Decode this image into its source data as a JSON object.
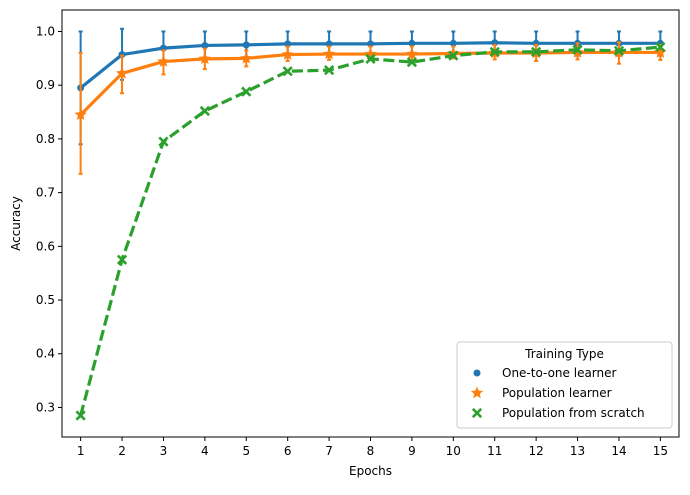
{
  "chart_data": {
    "type": "line",
    "xlabel": "Epochs",
    "ylabel": "Accuracy",
    "x": [
      1,
      2,
      3,
      4,
      5,
      6,
      7,
      8,
      9,
      10,
      11,
      12,
      13,
      14,
      15
    ],
    "x_tick_labels": [
      "1",
      "2",
      "3",
      "4",
      "5",
      "6",
      "7",
      "8",
      "9",
      "10",
      "11",
      "12",
      "13",
      "14",
      "15"
    ],
    "ylim": [
      0.245,
      1.04
    ],
    "y_ticks": [
      0.3,
      0.4,
      0.5,
      0.6,
      0.7,
      0.8,
      0.9,
      1.0
    ],
    "y_tick_labels": [
      "0.3",
      "0.4",
      "0.5",
      "0.6",
      "0.7",
      "0.8",
      "0.9",
      "1.0"
    ],
    "grid": false,
    "legend": {
      "title": "Training Type",
      "placement": "lower-right"
    },
    "series": [
      {
        "name": "One-to-one learner",
        "color": "#1f77b4",
        "marker": "circle",
        "linestyle": "solid",
        "values": [
          0.895,
          0.957,
          0.969,
          0.974,
          0.975,
          0.977,
          0.977,
          0.977,
          0.978,
          0.978,
          0.979,
          0.978,
          0.978,
          0.978,
          0.978
        ],
        "err_low": [
          0.79,
          0.91,
          0.94,
          0.948,
          0.95,
          0.953,
          0.955,
          0.955,
          0.955,
          0.955,
          0.958,
          0.955,
          0.955,
          0.955,
          0.955
        ],
        "err_high": [
          1.0,
          1.005,
          1.0,
          1.0,
          1.0,
          1.0,
          1.0,
          1.0,
          1.0,
          1.0,
          1.0,
          1.0,
          1.0,
          1.0,
          1.0
        ]
      },
      {
        "name": "Population learner",
        "color": "#ff7f0e",
        "marker": "star",
        "linestyle": "solid",
        "values": [
          0.845,
          0.922,
          0.944,
          0.949,
          0.95,
          0.957,
          0.958,
          0.958,
          0.958,
          0.959,
          0.96,
          0.96,
          0.961,
          0.961,
          0.961
        ],
        "err_low": [
          0.735,
          0.885,
          0.92,
          0.93,
          0.935,
          0.945,
          0.947,
          0.947,
          0.945,
          0.95,
          0.948,
          0.945,
          0.948,
          0.94,
          0.947
        ],
        "err_high": [
          0.96,
          0.955,
          0.965,
          0.968,
          0.965,
          0.972,
          0.972,
          0.972,
          0.972,
          0.972,
          0.975,
          0.975,
          0.978,
          0.98,
          0.975
        ]
      },
      {
        "name": "Population from scratch",
        "color": "#2ca02c",
        "marker": "x",
        "linestyle": "dashed",
        "values": [
          0.285,
          0.575,
          0.795,
          0.852,
          0.888,
          0.926,
          0.928,
          0.949,
          0.943,
          0.955,
          0.962,
          0.962,
          0.966,
          0.964,
          0.971
        ]
      }
    ]
  }
}
